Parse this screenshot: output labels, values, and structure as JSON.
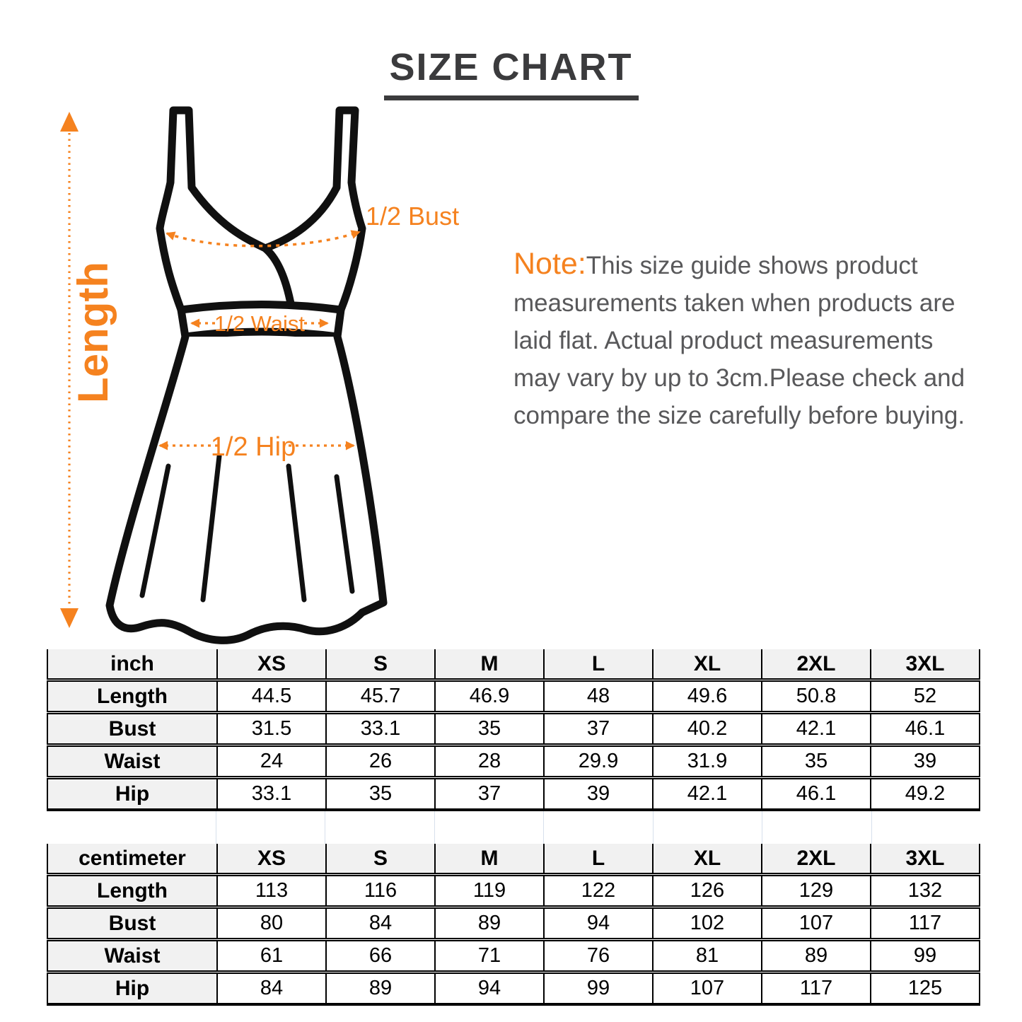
{
  "title": "SIZE CHART",
  "note": {
    "label": "Note:",
    "lines": [
      "This size guide shows product",
      "measurements taken when products are",
      "laid flat. Actual product measurements",
      "may vary by up to 3cm.Please check and",
      "compare the size carefully before buying."
    ]
  },
  "diagram": {
    "accent_color": "#f5821f",
    "labels": {
      "length": "Length",
      "half_bust": "1/2 Bust",
      "half_waist": "1/2 Waist",
      "half_hip": "1/2 Hip"
    }
  },
  "tables": {
    "inch": {
      "unit": "inch",
      "sizes": [
        "XS",
        "S",
        "M",
        "L",
        "XL",
        "2XL",
        "3XL"
      ],
      "rows": [
        {
          "label": "Length",
          "values": [
            "44.5",
            "45.7",
            "46.9",
            "48",
            "49.6",
            "50.8",
            "52"
          ]
        },
        {
          "label": "Bust",
          "values": [
            "31.5",
            "33.1",
            "35",
            "37",
            "40.2",
            "42.1",
            "46.1"
          ]
        },
        {
          "label": "Waist",
          "values": [
            "24",
            "26",
            "28",
            "29.9",
            "31.9",
            "35",
            "39"
          ]
        },
        {
          "label": "Hip",
          "values": [
            "33.1",
            "35",
            "37",
            "39",
            "42.1",
            "46.1",
            "49.2"
          ]
        }
      ]
    },
    "cm": {
      "unit": "centimeter",
      "sizes": [
        "XS",
        "S",
        "M",
        "L",
        "XL",
        "2XL",
        "3XL"
      ],
      "rows": [
        {
          "label": "Length",
          "values": [
            "113",
            "116",
            "119",
            "122",
            "126",
            "129",
            "132"
          ]
        },
        {
          "label": "Bust",
          "values": [
            "80",
            "84",
            "89",
            "94",
            "102",
            "107",
            "117"
          ]
        },
        {
          "label": "Waist",
          "values": [
            "61",
            "66",
            "71",
            "76",
            "81",
            "89",
            "99"
          ]
        },
        {
          "label": "Hip",
          "values": [
            "84",
            "89",
            "94",
            "99",
            "107",
            "117",
            "125"
          ]
        }
      ]
    }
  }
}
